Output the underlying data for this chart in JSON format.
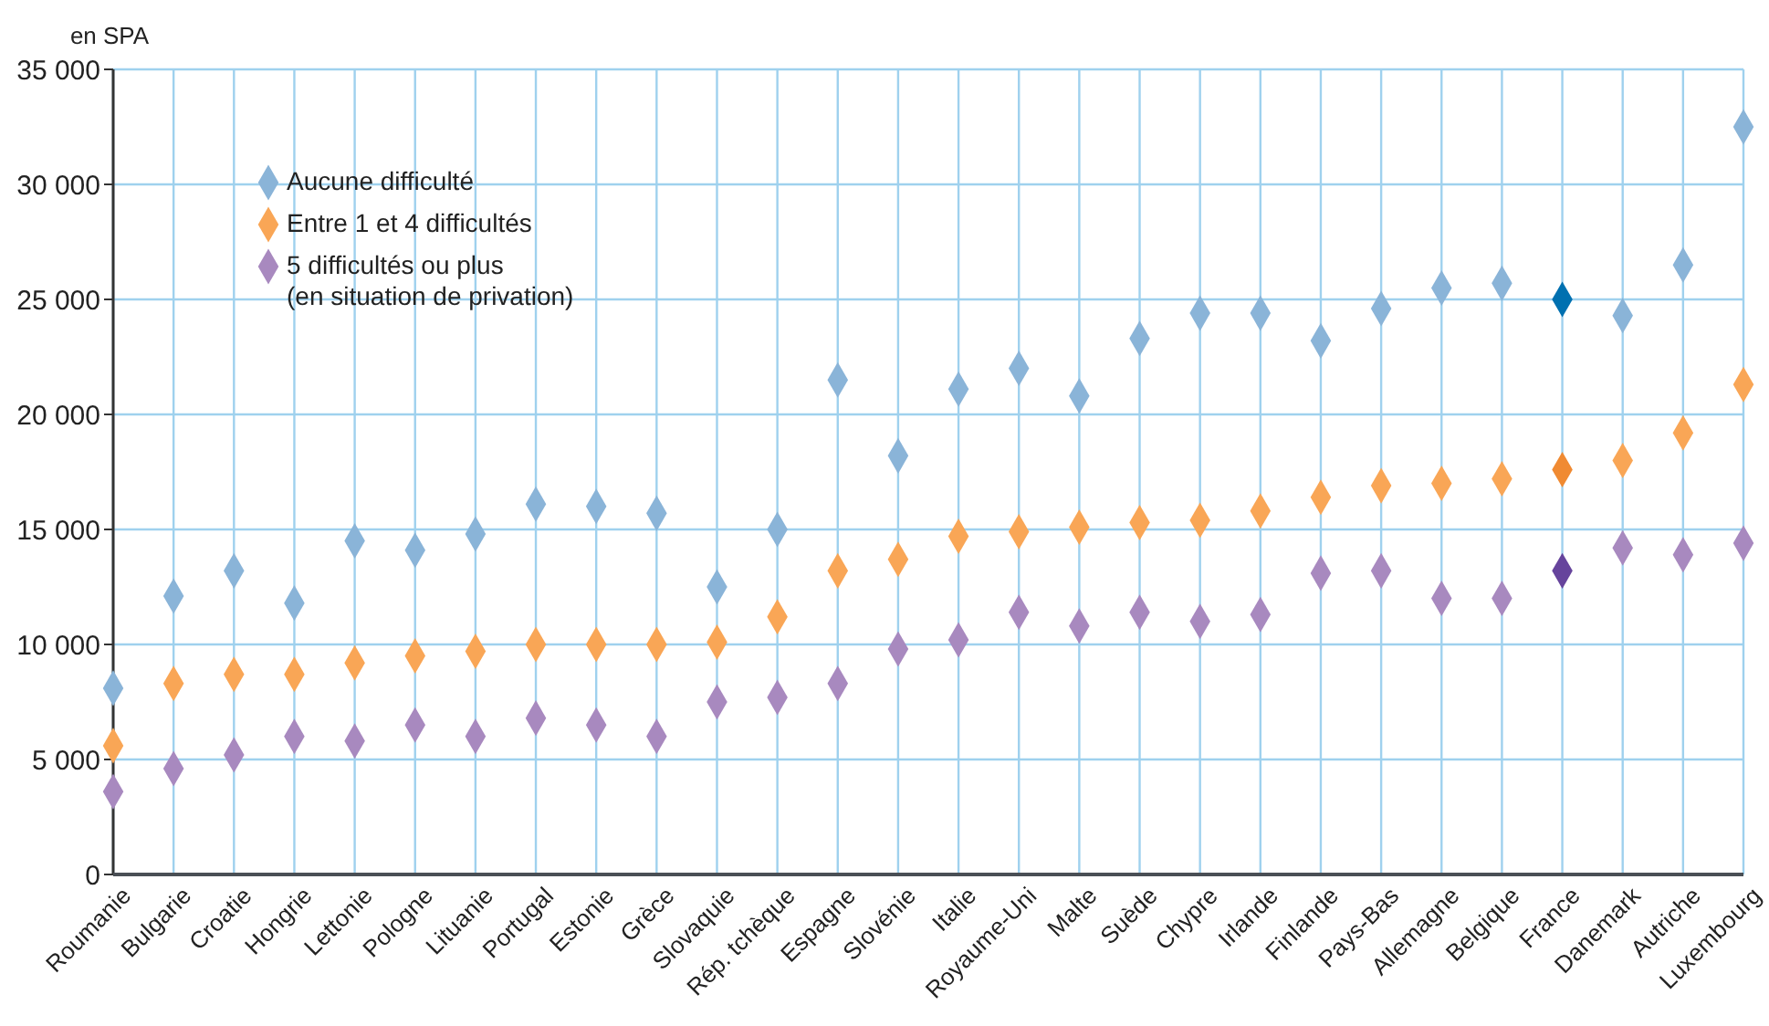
{
  "chart_data": {
    "type": "scatter",
    "ylabel": "en SPA",
    "marker": "diamond",
    "grid": true,
    "legend": "top left",
    "categories": [
      "Roumanie",
      "Bulgarie",
      "Croatie",
      "Hongrie",
      "Lettonie",
      "Pologne",
      "Lituanie",
      "Portugal",
      "Estonie",
      "Grèce",
      "Slovaquie",
      "Rép. tchèque",
      "Espagne",
      "Slovénie",
      "Italie",
      "Royaume-Uni",
      "Malte",
      "Suède",
      "Chypre",
      "Irlande",
      "Finlande",
      "Pays-Bas",
      "Allemagne",
      "Belgique",
      "France",
      "Danemark",
      "Autriche",
      "Luxembourg"
    ],
    "ylim": [
      0,
      35000
    ],
    "yticks": [
      {
        "value": 0,
        "label": "0"
      },
      {
        "value": 5000,
        "label": "5 000"
      },
      {
        "value": 10000,
        "label": "10 000"
      },
      {
        "value": 15000,
        "label": "15 000"
      },
      {
        "value": 20000,
        "label": "20 000"
      },
      {
        "value": 25000,
        "label": "25 000"
      },
      {
        "value": 30000,
        "label": "30 000"
      },
      {
        "value": 35000,
        "label": "35 000"
      }
    ],
    "series": [
      {
        "name": "Aucune difficulté",
        "color": "#8ab4d8",
        "colors": [
          "#8ab4d8",
          "#8ab4d8",
          "#8ab4d8",
          "#8ab4d8",
          "#8ab4d8",
          "#8ab4d8",
          "#8ab4d8",
          "#8ab4d8",
          "#8ab4d8",
          "#8ab4d8",
          "#8ab4d8",
          "#8ab4d8",
          "#8ab4d8",
          "#8ab4d8",
          "#8ab4d8",
          "#8ab4d8",
          "#8ab4d8",
          "#8ab4d8",
          "#8ab4d8",
          "#8ab4d8",
          "#8ab4d8",
          "#8ab4d8",
          "#8ab4d8",
          "#8ab4d8",
          "#0070b0",
          "#8ab4d8",
          "#8ab4d8",
          "#8ab4d8"
        ],
        "values": [
          8100,
          12100,
          13200,
          11800,
          14500,
          14100,
          14800,
          16100,
          16000,
          15700,
          12500,
          15000,
          21500,
          18200,
          21100,
          22000,
          20800,
          23300,
          24400,
          24400,
          23200,
          24600,
          25500,
          25700,
          25000,
          24300,
          26500,
          32500
        ]
      },
      {
        "name": "Entre 1 et 4 difficultés",
        "color": "#f9a656",
        "colors": [
          "#f9a656",
          "#f9a656",
          "#f9a656",
          "#f9a656",
          "#f9a656",
          "#f9a656",
          "#f9a656",
          "#f9a656",
          "#f9a656",
          "#f9a656",
          "#f9a656",
          "#f9a656",
          "#f9a656",
          "#f9a656",
          "#f9a656",
          "#f9a656",
          "#f9a656",
          "#f9a656",
          "#f9a656",
          "#f9a656",
          "#f9a656",
          "#f9a656",
          "#f9a656",
          "#f9a656",
          "#f08a32",
          "#f9a656",
          "#f9a656",
          "#f9a656"
        ],
        "values": [
          5600,
          8300,
          8700,
          8700,
          9200,
          9500,
          9700,
          10000,
          10000,
          10000,
          10100,
          11200,
          13200,
          13700,
          14700,
          14900,
          15100,
          15300,
          15400,
          15800,
          16400,
          16900,
          17000,
          17200,
          17600,
          18000,
          19200,
          21300
        ]
      },
      {
        "name": "5 difficultés ou plus\n(en situation de privation)",
        "color": "#a889bf",
        "colors": [
          "#a889bf",
          "#a889bf",
          "#a889bf",
          "#a889bf",
          "#a889bf",
          "#a889bf",
          "#a889bf",
          "#a889bf",
          "#a889bf",
          "#a889bf",
          "#a889bf",
          "#a889bf",
          "#a889bf",
          "#a889bf",
          "#a889bf",
          "#a889bf",
          "#a889bf",
          "#a889bf",
          "#a889bf",
          "#a889bf",
          "#a889bf",
          "#a889bf",
          "#a889bf",
          "#a889bf",
          "#66449c",
          "#a889bf",
          "#a889bf",
          "#a889bf"
        ],
        "values": [
          3600,
          4600,
          5200,
          6000,
          5800,
          6500,
          6000,
          6800,
          6500,
          6000,
          7500,
          7700,
          8300,
          9800,
          10200,
          11400,
          10800,
          11400,
          11000,
          11300,
          13100,
          13200,
          12000,
          12000,
          13200,
          14200,
          13900,
          14400
        ]
      }
    ]
  }
}
